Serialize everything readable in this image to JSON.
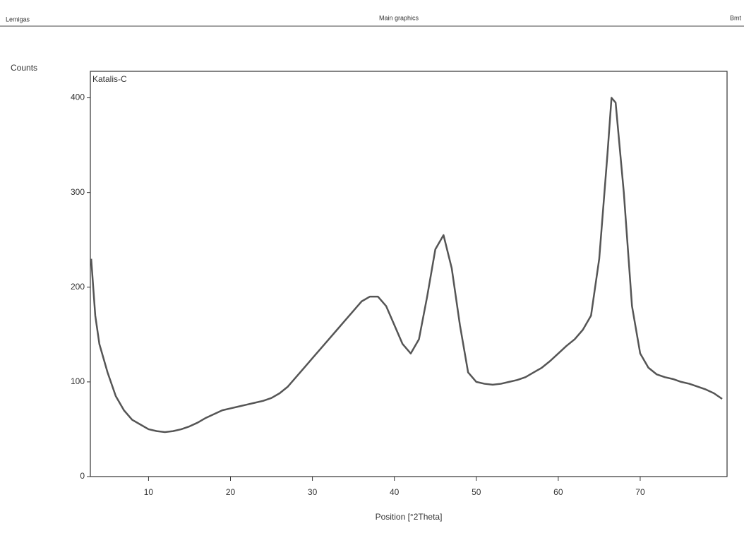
{
  "header": {
    "left": "Lemigas",
    "center": "Main graphics",
    "right": "Bmt"
  },
  "chart_data": {
    "type": "line",
    "ylabel": "Counts",
    "xlabel": "Position [°2Theta]",
    "series": [
      {
        "name": "Katalis-C",
        "color": "#555555",
        "x": [
          3,
          3.5,
          4,
          5,
          6,
          7,
          8,
          9,
          10,
          11,
          12,
          13,
          14,
          15,
          16,
          17,
          18,
          19,
          20,
          21,
          22,
          23,
          24,
          25,
          26,
          27,
          28,
          29,
          30,
          31,
          32,
          33,
          34,
          35,
          36,
          37,
          38,
          39,
          40,
          41,
          42,
          43,
          44,
          45,
          46,
          47,
          48,
          49,
          50,
          51,
          52,
          53,
          54,
          55,
          56,
          57,
          58,
          59,
          60,
          61,
          62,
          63,
          64,
          65,
          66,
          66.5,
          67,
          68,
          69,
          70,
          71,
          72,
          73,
          74,
          75,
          76,
          77,
          78,
          79,
          80
        ],
        "values": [
          230,
          170,
          140,
          110,
          85,
          70,
          60,
          55,
          50,
          48,
          47,
          48,
          50,
          53,
          57,
          62,
          66,
          70,
          72,
          74,
          76,
          78,
          80,
          83,
          88,
          95,
          105,
          115,
          125,
          135,
          145,
          155,
          165,
          175,
          185,
          190,
          190,
          180,
          160,
          140,
          130,
          145,
          190,
          240,
          255,
          220,
          160,
          110,
          100,
          98,
          97,
          98,
          100,
          102,
          105,
          110,
          115,
          122,
          130,
          138,
          145,
          155,
          170,
          230,
          340,
          400,
          395,
          300,
          180,
          130,
          115,
          108,
          105,
          103,
          100,
          98,
          95,
          92,
          88,
          82
        ]
      }
    ],
    "xlim": [
      2.9,
      80.6
    ],
    "ylim": [
      0,
      428
    ],
    "xticks": [
      10,
      20,
      30,
      40,
      50,
      60,
      70
    ],
    "yticks": [
      0,
      100,
      200,
      300,
      400
    ]
  }
}
